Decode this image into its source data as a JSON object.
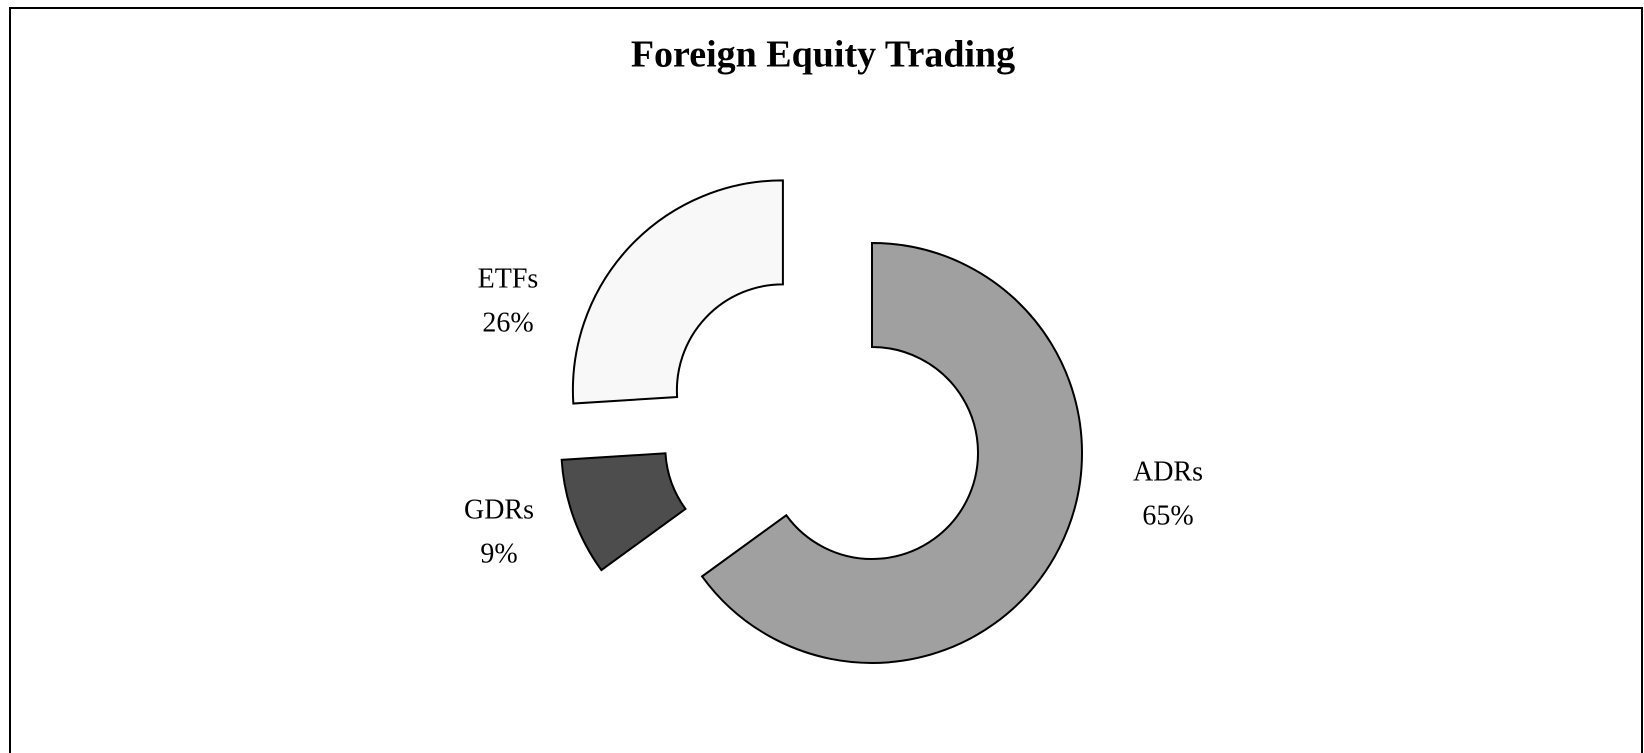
{
  "chart_data": {
    "type": "donut",
    "title": "Foreign Equity Trading",
    "categories": [
      "ADRs",
      "GDRs",
      "ETFs"
    ],
    "values": [
      65,
      9,
      26
    ],
    "value_labels": [
      "65%",
      "9%",
      "26%"
    ],
    "colors": [
      "#a0a0a0",
      "#4d4d4d",
      "#f8f8f8"
    ]
  }
}
